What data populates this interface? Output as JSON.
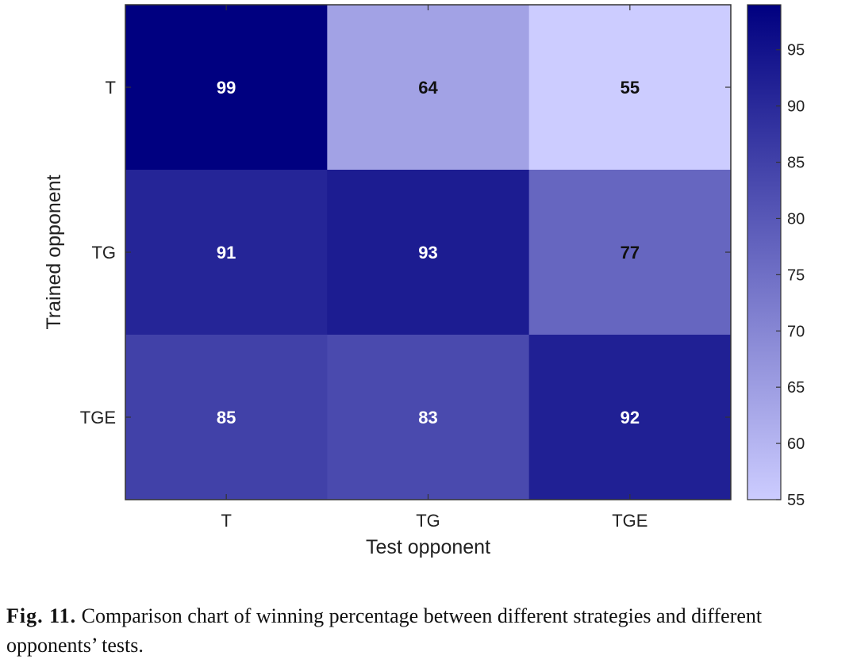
{
  "chart_data": {
    "type": "heatmap",
    "xlabel": "Test opponent",
    "ylabel": "Trained opponent",
    "x_categories": [
      "T",
      "TG",
      "TGE"
    ],
    "y_categories": [
      "T",
      "TG",
      "TGE"
    ],
    "values": [
      [
        99,
        64,
        55
      ],
      [
        91,
        93,
        77
      ],
      [
        85,
        83,
        92
      ]
    ],
    "colorbar": {
      "min": 55,
      "max": 99,
      "ticks": [
        55,
        60,
        65,
        70,
        75,
        80,
        85,
        90,
        95
      ],
      "low_color": "#ccccff",
      "high_color": "#000080"
    }
  },
  "caption": {
    "label": "Fig. 11.",
    "text": " Comparison chart of winning percentage between different strategies and different opponents’ tests."
  }
}
